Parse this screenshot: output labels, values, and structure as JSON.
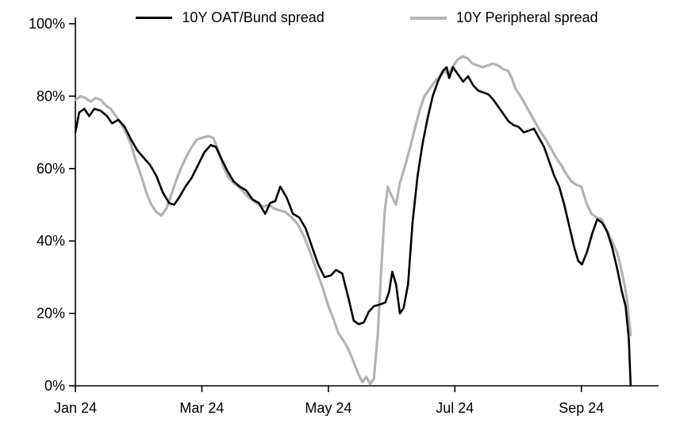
{
  "chart_data": {
    "type": "line",
    "title": "",
    "xlabel": "",
    "ylabel": "",
    "grid": false,
    "legend_position": "top",
    "xlim": [
      0,
      9.22
    ],
    "ylim": [
      0,
      100
    ],
    "x_unit": "months since Jan 2024",
    "x_ticks": [
      {
        "value": 0,
        "label": "Jan 24"
      },
      {
        "value": 2,
        "label": "Mar 24"
      },
      {
        "value": 4,
        "label": "May 24"
      },
      {
        "value": 6,
        "label": "Jul 24"
      },
      {
        "value": 8,
        "label": "Sep 24"
      }
    ],
    "y_ticks": [
      {
        "value": 0,
        "label": "0%"
      },
      {
        "value": 20,
        "label": "20%"
      },
      {
        "value": 40,
        "label": "40%"
      },
      {
        "value": 60,
        "label": "60%"
      },
      {
        "value": 80,
        "label": "80%"
      },
      {
        "value": 100,
        "label": "100%"
      }
    ],
    "series": [
      {
        "name": "10Y OAT/Bund spread",
        "color": "#000000",
        "width": 2.6,
        "points": [
          [
            0.0,
            70
          ],
          [
            0.06,
            75.5
          ],
          [
            0.14,
            76.5
          ],
          [
            0.22,
            74.5
          ],
          [
            0.3,
            76.5
          ],
          [
            0.4,
            76
          ],
          [
            0.5,
            74.5
          ],
          [
            0.58,
            72.5
          ],
          [
            0.68,
            73.5
          ],
          [
            0.78,
            71.5
          ],
          [
            0.88,
            68
          ],
          [
            0.98,
            65
          ],
          [
            1.08,
            63
          ],
          [
            1.18,
            61
          ],
          [
            1.28,
            58
          ],
          [
            1.38,
            53.5
          ],
          [
            1.48,
            50.5
          ],
          [
            1.56,
            50
          ],
          [
            1.64,
            52
          ],
          [
            1.74,
            55
          ],
          [
            1.84,
            57.5
          ],
          [
            1.94,
            61
          ],
          [
            2.04,
            64.5
          ],
          [
            2.14,
            66.5
          ],
          [
            2.22,
            66
          ],
          [
            2.3,
            63
          ],
          [
            2.4,
            59.5
          ],
          [
            2.5,
            56.5
          ],
          [
            2.6,
            55
          ],
          [
            2.7,
            54
          ],
          [
            2.8,
            51.5
          ],
          [
            2.9,
            50.5
          ],
          [
            3.0,
            47.5
          ],
          [
            3.08,
            50.5
          ],
          [
            3.16,
            51
          ],
          [
            3.24,
            55
          ],
          [
            3.34,
            52
          ],
          [
            3.44,
            47.5
          ],
          [
            3.54,
            46.5
          ],
          [
            3.64,
            43.5
          ],
          [
            3.74,
            38.5
          ],
          [
            3.84,
            33.5
          ],
          [
            3.94,
            30
          ],
          [
            4.04,
            30.5
          ],
          [
            4.12,
            32
          ],
          [
            4.22,
            31
          ],
          [
            4.32,
            24
          ],
          [
            4.4,
            18
          ],
          [
            4.48,
            17
          ],
          [
            4.56,
            17.5
          ],
          [
            4.64,
            20.5
          ],
          [
            4.72,
            22
          ],
          [
            4.82,
            22.5
          ],
          [
            4.9,
            23
          ],
          [
            4.96,
            26
          ],
          [
            5.01,
            31.5
          ],
          [
            5.07,
            28
          ],
          [
            5.13,
            20
          ],
          [
            5.19,
            21.5
          ],
          [
            5.26,
            28
          ],
          [
            5.33,
            45
          ],
          [
            5.41,
            58
          ],
          [
            5.49,
            67
          ],
          [
            5.57,
            74
          ],
          [
            5.65,
            80
          ],
          [
            5.73,
            84
          ],
          [
            5.81,
            87
          ],
          [
            5.87,
            88
          ],
          [
            5.91,
            85
          ],
          [
            5.97,
            88
          ],
          [
            6.05,
            86
          ],
          [
            6.13,
            84
          ],
          [
            6.21,
            85.5
          ],
          [
            6.29,
            83
          ],
          [
            6.37,
            81.5
          ],
          [
            6.45,
            81
          ],
          [
            6.53,
            80.5
          ],
          [
            6.61,
            79
          ],
          [
            6.69,
            77
          ],
          [
            6.77,
            75
          ],
          [
            6.85,
            73
          ],
          [
            6.93,
            72
          ],
          [
            7.01,
            71.5
          ],
          [
            7.09,
            70
          ],
          [
            7.17,
            70.5
          ],
          [
            7.25,
            71
          ],
          [
            7.33,
            68.5
          ],
          [
            7.41,
            66
          ],
          [
            7.49,
            62
          ],
          [
            7.57,
            58
          ],
          [
            7.65,
            55
          ],
          [
            7.73,
            50
          ],
          [
            7.81,
            44
          ],
          [
            7.89,
            38
          ],
          [
            7.95,
            34.5
          ],
          [
            8.01,
            33.5
          ],
          [
            8.09,
            37
          ],
          [
            8.17,
            42
          ],
          [
            8.25,
            46
          ],
          [
            8.33,
            45
          ],
          [
            8.41,
            42.5
          ],
          [
            8.49,
            38
          ],
          [
            8.57,
            32
          ],
          [
            8.64,
            26
          ],
          [
            8.7,
            22
          ],
          [
            8.75,
            13
          ],
          [
            8.78,
            0
          ]
        ]
      },
      {
        "name": "10Y Peripheral spread",
        "color": "#b3b3b3",
        "width": 3.2,
        "points": [
          [
            0.0,
            79
          ],
          [
            0.08,
            80
          ],
          [
            0.16,
            79.5
          ],
          [
            0.24,
            78.5
          ],
          [
            0.32,
            79.5
          ],
          [
            0.4,
            79
          ],
          [
            0.48,
            77.5
          ],
          [
            0.56,
            76.5
          ],
          [
            0.64,
            74.5
          ],
          [
            0.72,
            72.5
          ],
          [
            0.8,
            70
          ],
          [
            0.88,
            66.5
          ],
          [
            0.96,
            62
          ],
          [
            1.04,
            58
          ],
          [
            1.12,
            53.5
          ],
          [
            1.2,
            50
          ],
          [
            1.28,
            48
          ],
          [
            1.36,
            47
          ],
          [
            1.44,
            49
          ],
          [
            1.52,
            53
          ],
          [
            1.6,
            57
          ],
          [
            1.68,
            60.5
          ],
          [
            1.76,
            63.5
          ],
          [
            1.84,
            66
          ],
          [
            1.92,
            68
          ],
          [
            2.0,
            68.5
          ],
          [
            2.1,
            69
          ],
          [
            2.18,
            68.5
          ],
          [
            2.26,
            65
          ],
          [
            2.34,
            60.5
          ],
          [
            2.42,
            57.5
          ],
          [
            2.5,
            56
          ],
          [
            2.58,
            55
          ],
          [
            2.66,
            53.5
          ],
          [
            2.74,
            52
          ],
          [
            2.82,
            51
          ],
          [
            2.9,
            50
          ],
          [
            2.98,
            49.5
          ],
          [
            3.06,
            50
          ],
          [
            3.14,
            49
          ],
          [
            3.22,
            48.5
          ],
          [
            3.32,
            48
          ],
          [
            3.42,
            46.5
          ],
          [
            3.52,
            44.5
          ],
          [
            3.62,
            41
          ],
          [
            3.72,
            36.5
          ],
          [
            3.82,
            31.5
          ],
          [
            3.92,
            26.5
          ],
          [
            4.0,
            22
          ],
          [
            4.08,
            18.5
          ],
          [
            4.16,
            14.5
          ],
          [
            4.24,
            12.5
          ],
          [
            4.32,
            10
          ],
          [
            4.4,
            6.5
          ],
          [
            4.48,
            3
          ],
          [
            4.54,
            1
          ],
          [
            4.6,
            2.5
          ],
          [
            4.66,
            0.5
          ],
          [
            4.72,
            2
          ],
          [
            4.78,
            14
          ],
          [
            4.83,
            30
          ],
          [
            4.89,
            48
          ],
          [
            4.94,
            55
          ],
          [
            5.0,
            52.5
          ],
          [
            5.07,
            50
          ],
          [
            5.13,
            56
          ],
          [
            5.2,
            60
          ],
          [
            5.28,
            65
          ],
          [
            5.36,
            70.5
          ],
          [
            5.44,
            76
          ],
          [
            5.52,
            80
          ],
          [
            5.6,
            82
          ],
          [
            5.68,
            84
          ],
          [
            5.76,
            85.5
          ],
          [
            5.84,
            87
          ],
          [
            5.9,
            86
          ],
          [
            5.96,
            88
          ],
          [
            6.04,
            90
          ],
          [
            6.12,
            91
          ],
          [
            6.2,
            90.5
          ],
          [
            6.28,
            89
          ],
          [
            6.36,
            88.5
          ],
          [
            6.44,
            88
          ],
          [
            6.52,
            88.5
          ],
          [
            6.6,
            89
          ],
          [
            6.68,
            88.5
          ],
          [
            6.76,
            87.5
          ],
          [
            6.84,
            87
          ],
          [
            6.9,
            85
          ],
          [
            6.96,
            82
          ],
          [
            7.04,
            80
          ],
          [
            7.12,
            77.5
          ],
          [
            7.2,
            75
          ],
          [
            7.28,
            72.5
          ],
          [
            7.36,
            70
          ],
          [
            7.44,
            68
          ],
          [
            7.52,
            65.5
          ],
          [
            7.6,
            63
          ],
          [
            7.68,
            61
          ],
          [
            7.76,
            58.5
          ],
          [
            7.84,
            56.5
          ],
          [
            7.92,
            55.5
          ],
          [
            8.0,
            55
          ],
          [
            8.08,
            50.5
          ],
          [
            8.16,
            47.5
          ],
          [
            8.24,
            46.5
          ],
          [
            8.32,
            46
          ],
          [
            8.4,
            43
          ],
          [
            8.48,
            40
          ],
          [
            8.56,
            37
          ],
          [
            8.62,
            33
          ],
          [
            8.68,
            28
          ],
          [
            8.72,
            24
          ],
          [
            8.75,
            19
          ],
          [
            8.78,
            14
          ]
        ]
      }
    ]
  }
}
